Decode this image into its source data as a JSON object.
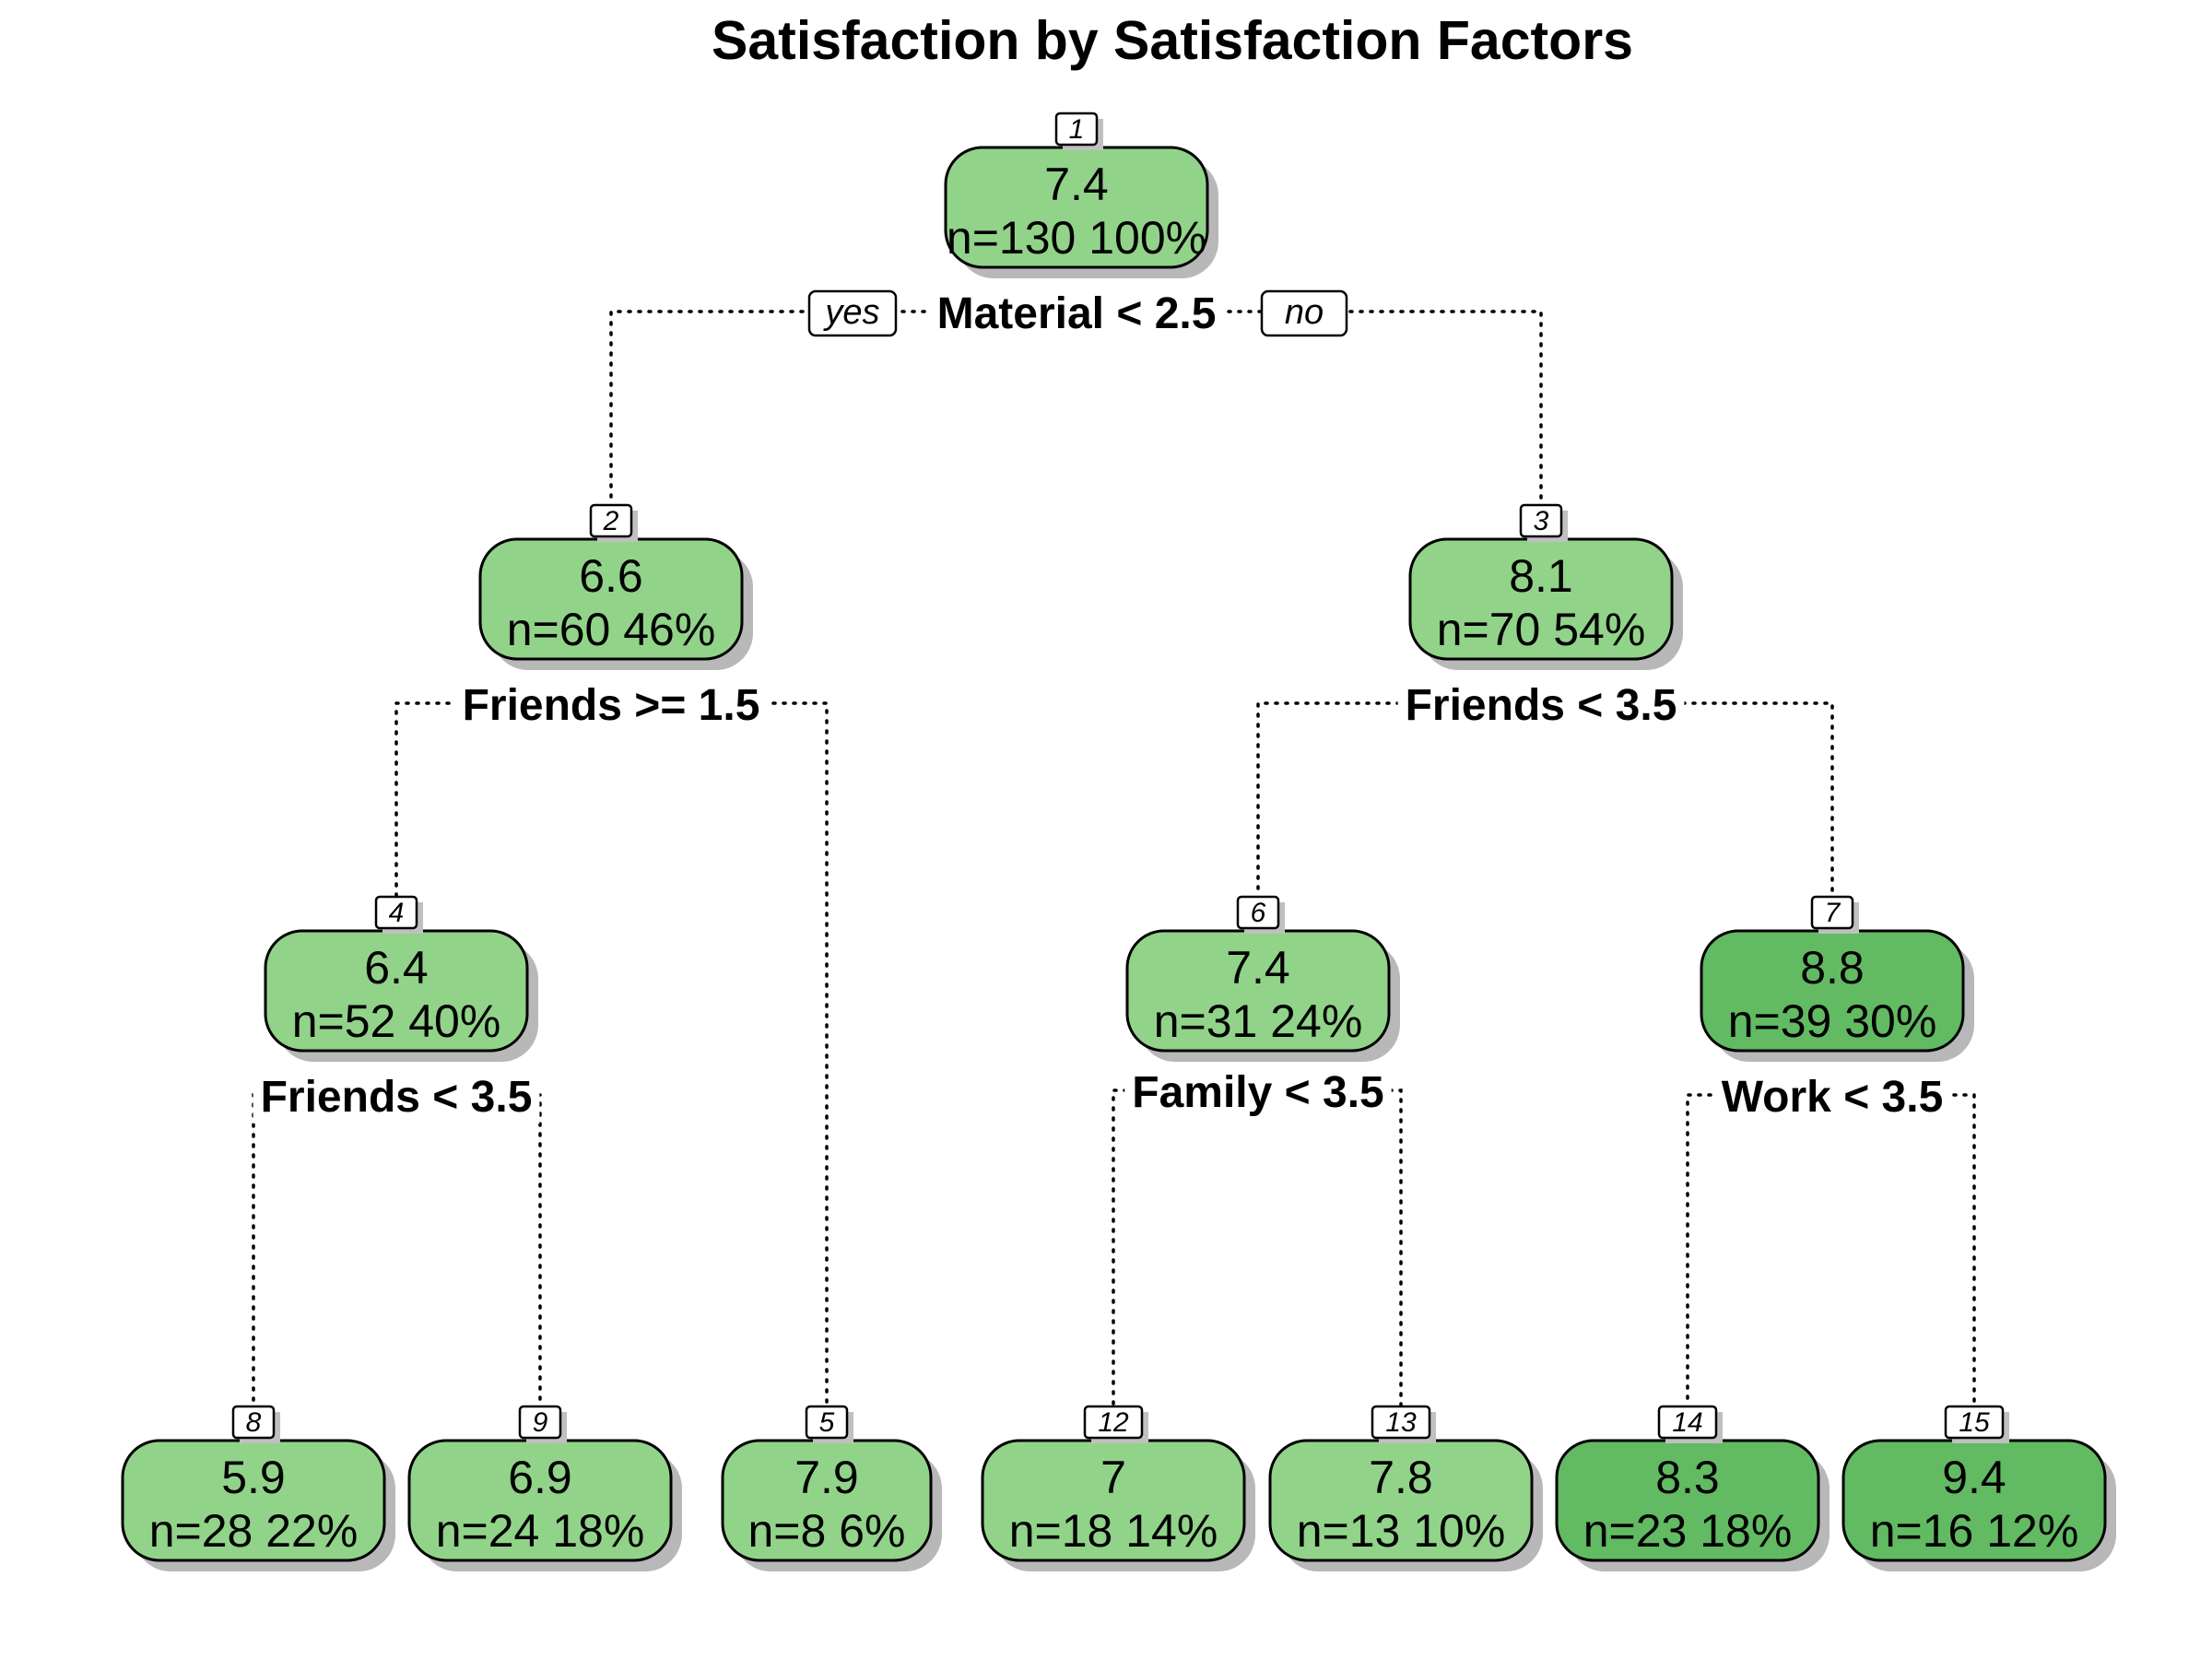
{
  "title": "Satisfaction by Satisfaction Factors",
  "branch_labels": {
    "yes": "yes",
    "no": "no"
  },
  "colors": {
    "light": "#92d38a",
    "dark": "#62ba62",
    "edge": "#000000",
    "background": "#ffffff"
  },
  "nodes": [
    {
      "id": "1",
      "value": "7.4",
      "count": "n=130  100%",
      "split": "Material < 2.5",
      "shade": "light"
    },
    {
      "id": "2",
      "value": "6.6",
      "count": "n=60  46%",
      "split": "Friends >= 1.5",
      "shade": "light"
    },
    {
      "id": "3",
      "value": "8.1",
      "count": "n=70  54%",
      "split": "Friends < 3.5",
      "shade": "light"
    },
    {
      "id": "4",
      "value": "6.4",
      "count": "n=52  40%",
      "split": "Friends < 3.5",
      "shade": "light"
    },
    {
      "id": "6",
      "value": "7.4",
      "count": "n=31  24%",
      "split": "Family < 3.5",
      "shade": "light"
    },
    {
      "id": "7",
      "value": "8.8",
      "count": "n=39  30%",
      "split": "Work < 3.5",
      "shade": "dark"
    },
    {
      "id": "8",
      "value": "5.9",
      "count": "n=28  22%",
      "shade": "light"
    },
    {
      "id": "9",
      "value": "6.9",
      "count": "n=24  18%",
      "shade": "light"
    },
    {
      "id": "5",
      "value": "7.9",
      "count": "n=8  6%",
      "shade": "light"
    },
    {
      "id": "12",
      "value": "7",
      "count": "n=18  14%",
      "shade": "light"
    },
    {
      "id": "13",
      "value": "7.8",
      "count": "n=13  10%",
      "shade": "light"
    },
    {
      "id": "14",
      "value": "8.3",
      "count": "n=23  18%",
      "shade": "dark"
    },
    {
      "id": "15",
      "value": "9.4",
      "count": "n=16  12%",
      "shade": "dark"
    }
  ],
  "edges": [
    {
      "from": "1",
      "to": "2"
    },
    {
      "from": "1",
      "to": "3"
    },
    {
      "from": "2",
      "to": "4"
    },
    {
      "from": "2",
      "to": "5"
    },
    {
      "from": "3",
      "to": "6"
    },
    {
      "from": "3",
      "to": "7"
    },
    {
      "from": "4",
      "to": "8"
    },
    {
      "from": "4",
      "to": "9"
    },
    {
      "from": "6",
      "to": "12"
    },
    {
      "from": "6",
      "to": "13"
    },
    {
      "from": "7",
      "to": "14"
    },
    {
      "from": "7",
      "to": "15"
    }
  ]
}
